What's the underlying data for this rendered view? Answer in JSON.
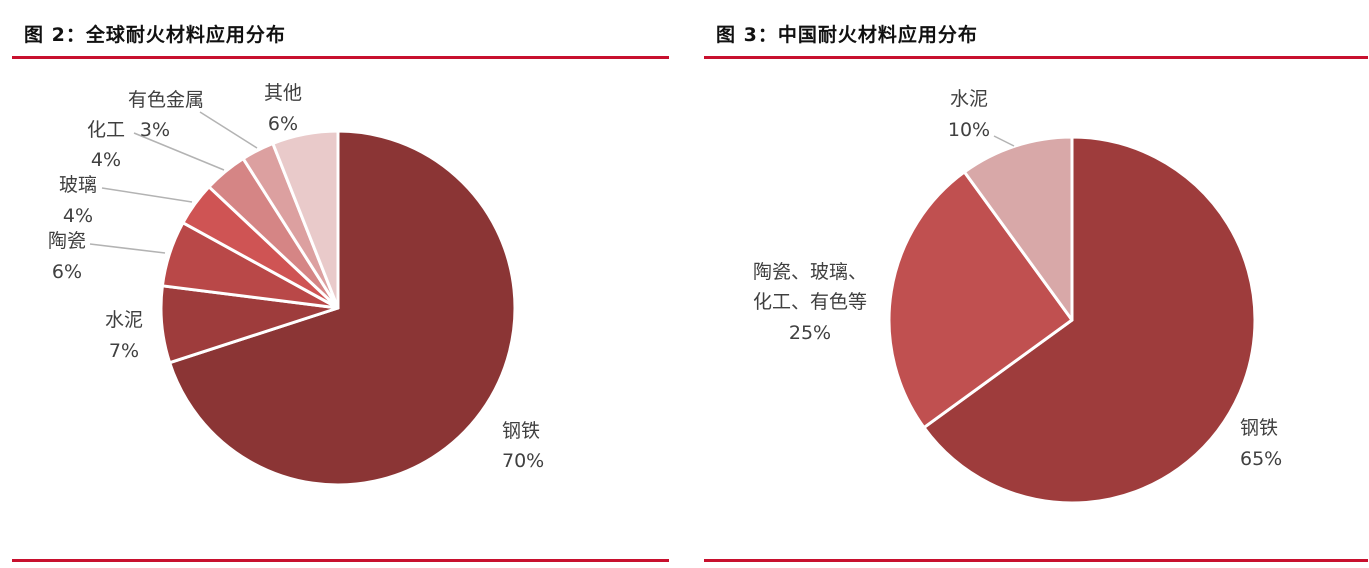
{
  "figures": [
    {
      "title": "图 2：全球耐火材料应用分布"
    },
    {
      "title": "图 3：中国耐火材料应用分布"
    }
  ],
  "colors": {
    "rule": "#c8102e"
  },
  "chart_data": [
    {
      "type": "pie",
      "title": "图 2：全球耐火材料应用分布",
      "start_angle_deg": 0,
      "direction": "clockwise",
      "slices": [
        {
          "label": "钢铁",
          "value": 70,
          "text": "70%",
          "color": "#8b3535"
        },
        {
          "label": "水泥",
          "value": 7,
          "text": "7%",
          "color": "#9e3c3c"
        },
        {
          "label": "陶瓷",
          "value": 6,
          "text": "6%",
          "color": "#b94848"
        },
        {
          "label": "玻璃",
          "value": 4,
          "text": "4%",
          "color": "#cf5454"
        },
        {
          "label": "化工",
          "value": 4,
          "text": "4%",
          "color": "#d58585"
        },
        {
          "label": "有色金属",
          "value": 3,
          "text": "3%",
          "color": "#dca0a0"
        },
        {
          "label": "其他",
          "value": 6,
          "text": "6%",
          "color": "#e9caca"
        }
      ]
    },
    {
      "type": "pie",
      "title": "图 3：中国耐火材料应用分布",
      "start_angle_deg": 0,
      "direction": "clockwise",
      "slices": [
        {
          "label": "钢铁",
          "value": 65,
          "text": "65%",
          "color": "#9e3c3c"
        },
        {
          "label": "陶瓷、玻璃、化工、有色等",
          "label_lines": [
            "陶瓷、玻璃、",
            "化工、有色等"
          ],
          "value": 25,
          "text": "25%",
          "color": "#c05050"
        },
        {
          "label": "水泥",
          "value": 10,
          "text": "10%",
          "color": "#d8a8a8"
        }
      ]
    }
  ]
}
